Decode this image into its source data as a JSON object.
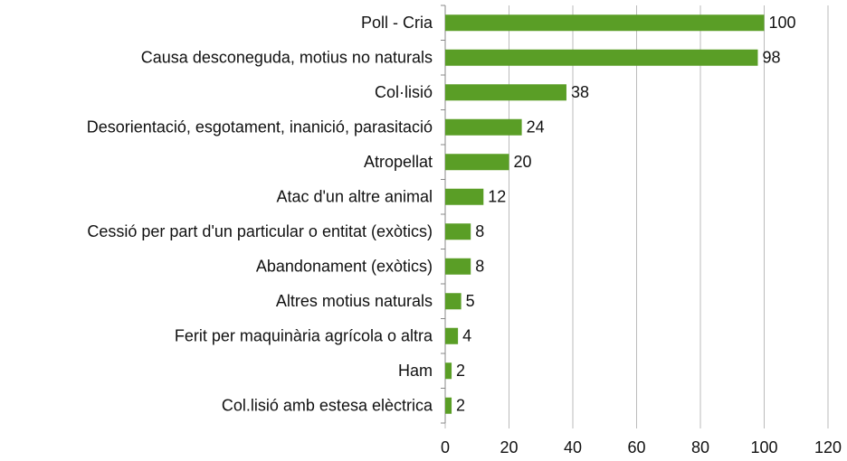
{
  "chart_data": {
    "type": "bar",
    "orientation": "horizontal",
    "categories": [
      "Poll - Cria",
      "Causa desconeguda, motius no naturals",
      "Col·lisió",
      "Desorientació, esgotament, inanició, parasitació",
      "Atropellat",
      "Atac d'un altre animal",
      "Cessió per part d'un particular o entitat (exòtics)",
      "Abandonament (exòtics)",
      "Altres motius naturals",
      "Ferit per maquinària agrícola o altra",
      "Ham",
      "Col.lisió amb estesa elèctrica"
    ],
    "values": [
      100,
      98,
      38,
      24,
      20,
      12,
      8,
      8,
      5,
      4,
      2,
      2
    ],
    "color": "#5a9e26",
    "xlim": [
      0,
      120
    ],
    "xticks": [
      0,
      20,
      40,
      60,
      80,
      100,
      120
    ],
    "grid": true
  }
}
